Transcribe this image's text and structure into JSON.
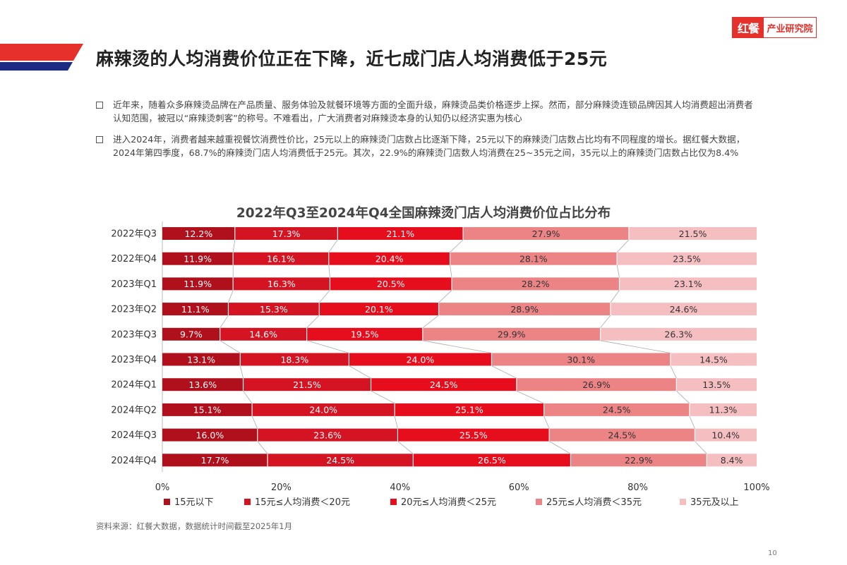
{
  "brand": {
    "mark": "红餐",
    "name": "产业研究院"
  },
  "page": {
    "title": "麻辣烫的人均消费价位正在下降，近七成门店人均消费低于25元",
    "bullets": [
      "近年来，随着众多麻辣烫品牌在产品质量、服务体验及就餐环境等方面的全面升级，麻辣烫品类价格逐步上探。然而，部分麻辣烫连锁品牌因其人均消费超出消费者认知范围，被冠以“麻辣烫刺客”的称号。不难看出，广大消费者对麻辣烫本身的认知仍以经济实惠为核心",
      "进入2024年，消费者越来越重视餐饮消费性价比，25元以上的麻辣烫门店数占比逐渐下降，25元以下的麻辣烫门店数占比均有不同程度的增长。据红餐大数据，2024年第四季度，68.7%的麻辣烫门店人均消费低于25元。其次，22.9%的麻辣烫门店数人均消费在25~35元之间，35元以上的麻辣烫门店数占比仅为8.4%"
    ],
    "source": "资料来源：红餐大数据，数据统计时间截至2025年1月",
    "page_number": "10"
  },
  "chart_data": {
    "type": "bar",
    "orientation": "horizontal",
    "stacked": "percent",
    "title": "2022年Q3至2024年Q4全国麻辣烫门店人均消费价位占比分布",
    "categories": [
      "2022年Q3",
      "2022年Q4",
      "2023年Q1",
      "2023年Q2",
      "2023年Q3",
      "2023年Q4",
      "2024年Q1",
      "2024年Q2",
      "2024年Q3",
      "2024年Q4"
    ],
    "series": [
      {
        "name": "15元以下",
        "color": "#b0101b",
        "values": [
          12.2,
          11.9,
          11.9,
          11.1,
          9.7,
          13.1,
          13.6,
          15.1,
          16.0,
          17.7
        ]
      },
      {
        "name": "15元≤人均消费＜20元",
        "color": "#d41422",
        "values": [
          17.3,
          16.1,
          16.3,
          15.3,
          14.6,
          18.3,
          21.5,
          24.0,
          23.6,
          24.5
        ]
      },
      {
        "name": "20元≤人均消费＜25元",
        "color": "#e60d1c",
        "values": [
          21.1,
          20.4,
          20.5,
          20.1,
          19.5,
          24.0,
          24.5,
          25.1,
          25.5,
          26.5
        ]
      },
      {
        "name": "25元≤人均消费＜35元",
        "color": "#ec8486",
        "values": [
          27.9,
          28.1,
          28.2,
          28.9,
          29.9,
          30.1,
          26.9,
          24.5,
          24.5,
          22.9
        ]
      },
      {
        "name": "35元及以上",
        "color": "#f5bfc2",
        "values": [
          21.5,
          23.5,
          23.1,
          24.6,
          26.3,
          14.5,
          13.5,
          11.3,
          10.4,
          8.4
        ]
      }
    ],
    "xticks": [
      "0%",
      "20%",
      "40%",
      "60%",
      "80%",
      "100%"
    ],
    "xlim": [
      0,
      100
    ],
    "legend": "bottom"
  }
}
